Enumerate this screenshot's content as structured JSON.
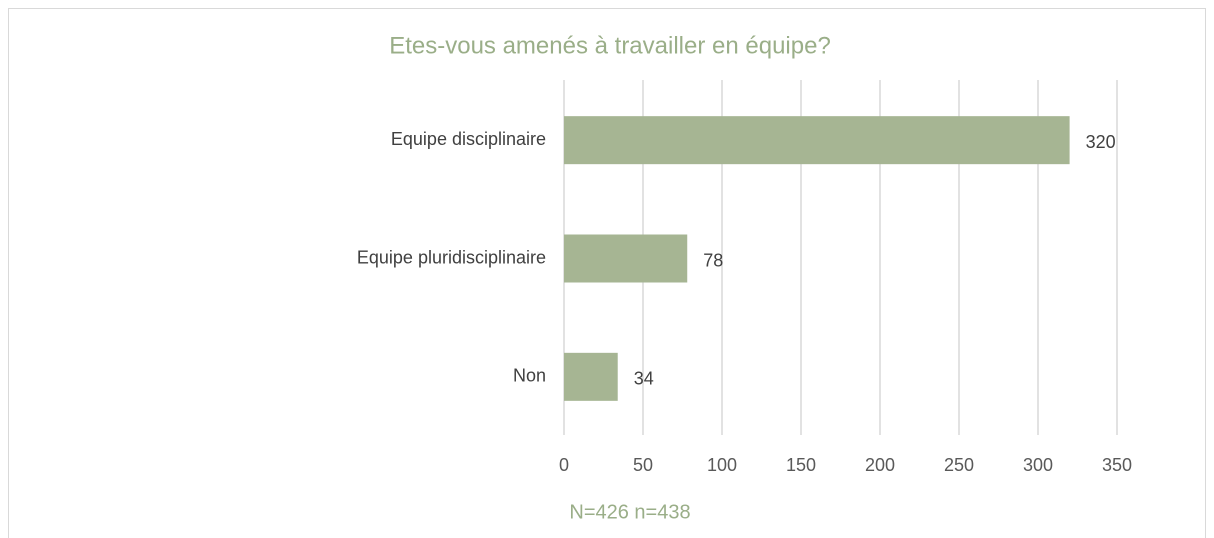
{
  "chart_data": {
    "type": "bar",
    "orientation": "horizontal",
    "title": "Etes-vous amenés à travailler en équipe?",
    "xlabel": "N=426 n=438",
    "categories": [
      "Equipe disciplinaire",
      "Equipe pluridisciplinaire",
      "Non"
    ],
    "values": [
      320,
      78,
      34
    ],
    "color": "#a6b593",
    "xlim": [
      0,
      350
    ],
    "xticks": [
      0,
      50,
      100,
      150,
      200,
      250,
      300,
      350
    ],
    "grid": true
  }
}
